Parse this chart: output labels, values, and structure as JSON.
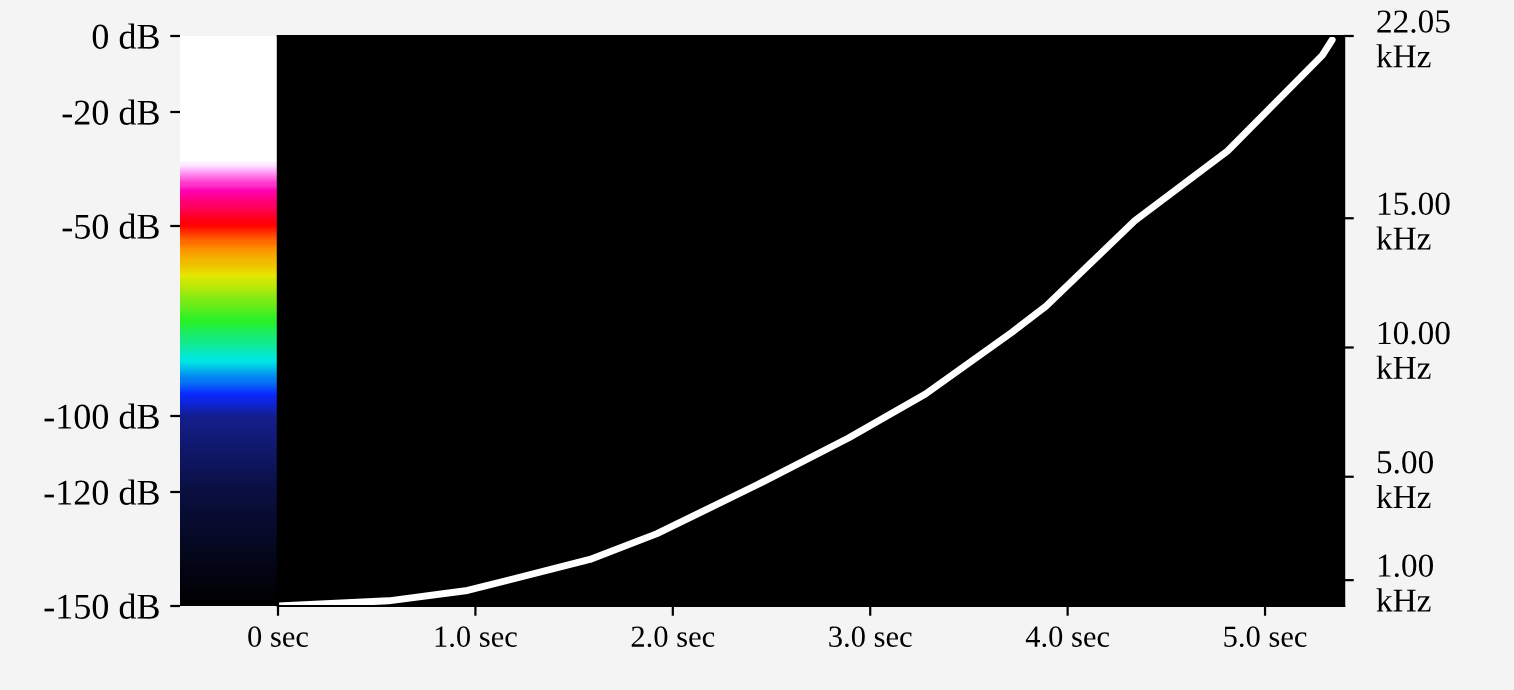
{
  "chart_data": {
    "type": "line",
    "x": [
      0,
      0.56,
      0.96,
      1.58,
      1.92,
      2.43,
      2.89,
      3.28,
      3.72,
      3.89,
      4.34,
      4.81,
      5.29,
      5.34
    ],
    "series": [
      {
        "color": "#ffffff",
        "axis": "y2",
        "values": [
          0,
          0.2,
          0.6,
          1.8,
          2.8,
          4.7,
          6.5,
          8.2,
          10.6,
          11.6,
          14.9,
          17.6,
          21.3,
          21.9
        ]
      }
    ],
    "xlim": [
      0,
      5.4
    ],
    "xticks": [
      {
        "value": 0,
        "label": "0 sec"
      },
      {
        "value": 1,
        "label": "1.0 sec"
      },
      {
        "value": 2,
        "label": "2.0 sec"
      },
      {
        "value": 3,
        "label": "3.0 sec"
      },
      {
        "value": 4,
        "label": "4.0 sec"
      },
      {
        "value": 5,
        "label": "5.0 sec"
      }
    ],
    "y2lim": [
      0,
      22.05
    ],
    "y2ticks": [
      {
        "value": 1,
        "label": "1.00\nkHz"
      },
      {
        "value": 5,
        "label": "5.00\nkHz"
      },
      {
        "value": 10,
        "label": "10.00\nkHz"
      },
      {
        "value": 15,
        "label": "15.00\nkHz"
      },
      {
        "value": 22.05,
        "label": "22.05\nkHz"
      }
    ],
    "clim": [
      -150,
      0
    ],
    "cticks": [
      {
        "value": 0,
        "label": "0 dB"
      },
      {
        "value": -20,
        "label": "-20 dB"
      },
      {
        "value": -50,
        "label": "-50 dB"
      },
      {
        "value": -100,
        "label": "-100 dB"
      },
      {
        "value": -120,
        "label": "-120 dB"
      },
      {
        "value": -150,
        "label": "-150 dB"
      }
    ],
    "grid": false,
    "legend": false
  }
}
